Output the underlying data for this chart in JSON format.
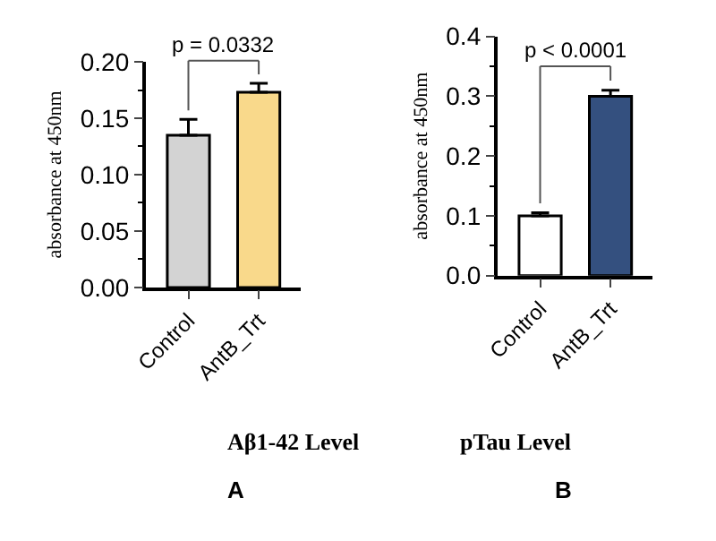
{
  "chart_data": [
    {
      "type": "bar",
      "xlabel": "Aβ1-42 Level",
      "ylabel": "absorbance at 450nm",
      "categories": [
        "Control",
        "AntB_Trt"
      ],
      "values": [
        0.135,
        0.173
      ],
      "colors": [
        "#d3d3d3",
        "#f9d98b"
      ],
      "errors": [
        [
          0.135,
          0.149
        ],
        [
          0.173,
          0.181
        ]
      ],
      "ylim": [
        0,
        0.2
      ],
      "yticks": [
        {
          "value": 0,
          "label": "0.00"
        },
        0.05,
        {
          "value": 0.1,
          "label": "0.10"
        },
        0.15,
        {
          "value": 0.2,
          "label": "0.20"
        }
      ],
      "annotations": [
        "p = 0.0332",
        "A"
      ]
    },
    {
      "type": "bar",
      "xlabel": "pTau Level",
      "ylabel": "absorbance at 450nm",
      "categories": [
        "Control",
        "AntB_Trt"
      ],
      "values": [
        0.1,
        0.3
      ],
      "colors": [
        "#ffffff",
        "#34507f"
      ],
      "errors": [
        [
          0.1,
          0.105
        ],
        [
          0.3,
          0.31
        ]
      ],
      "ylim": [
        0,
        0.4
      ],
      "yticks": [
        {
          "value": 0,
          "label": "0.0"
        },
        0.1,
        0.2,
        0.3,
        0.4
      ],
      "annotations": [
        "p < 0.0001",
        "B"
      ]
    }
  ]
}
